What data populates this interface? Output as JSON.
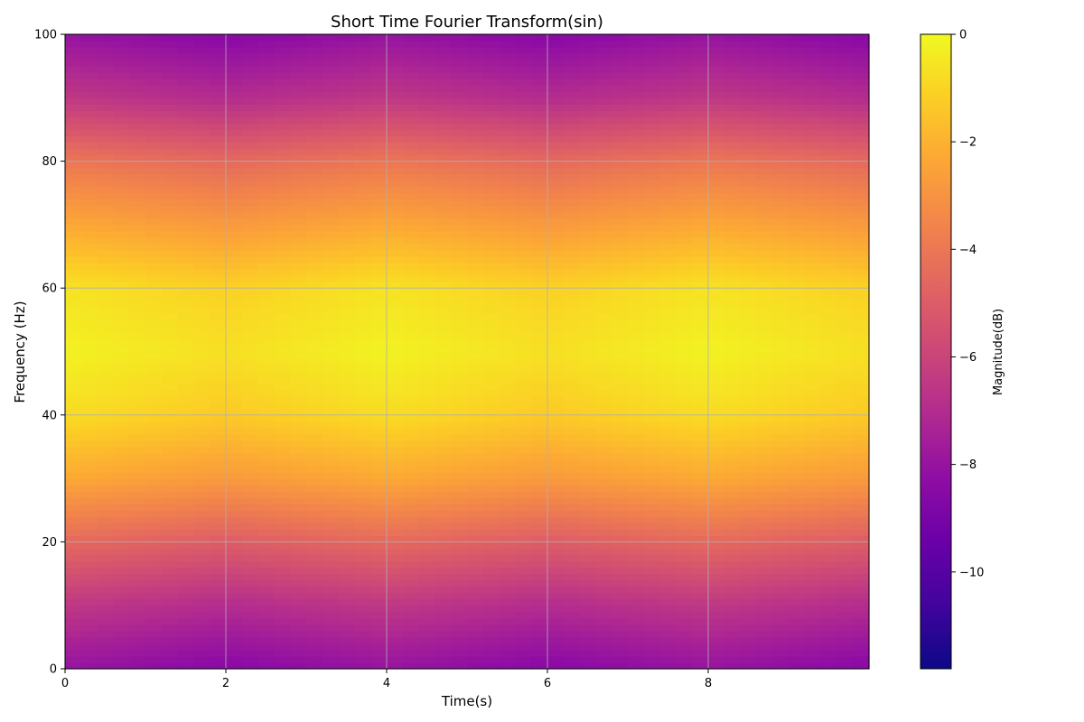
{
  "chart_data": {
    "type": "heatmap",
    "title": "Short Time Fourier Transform(sin)",
    "xlabel": "Time(s)",
    "ylabel": "Frequency (Hz)",
    "colorbar_label": "Magnitude(dB)",
    "colormap": "plasma",
    "xlim": [
      0,
      10
    ],
    "ylim": [
      0,
      100
    ],
    "x_ticks": [
      0,
      2,
      4,
      6,
      8
    ],
    "y_ticks": [
      0,
      20,
      40,
      60,
      80,
      100
    ],
    "colorbar_ticks": [
      0,
      -2,
      -4,
      -6,
      -8,
      -10
    ],
    "colorbar_range": [
      -11.8,
      0
    ],
    "grid": true,
    "frequency_profile": {
      "frequency_hz": [
        0,
        10,
        20,
        30,
        40,
        50,
        60,
        70,
        80,
        90,
        100
      ],
      "magnitude_db": [
        -8,
        -6.5,
        -4.5,
        -2.3,
        -0.8,
        -0.2,
        -0.6,
        -2.3,
        -4,
        -6.5,
        -8
      ]
    },
    "time_modulation": {
      "time_s": [
        0,
        2,
        4,
        6,
        8,
        10
      ],
      "magnitude_offset_db": [
        0,
        -0.5,
        0,
        -0.5,
        0,
        -0.5
      ]
    }
  },
  "colors": {
    "grid": "#b0b0b0",
    "plasma": [
      "#0d0887",
      "#41049d",
      "#6a00a8",
      "#8f0da4",
      "#b12a90",
      "#cc4778",
      "#e16462",
      "#f2844b",
      "#fca636",
      "#fcce25",
      "#f0f921"
    ]
  }
}
